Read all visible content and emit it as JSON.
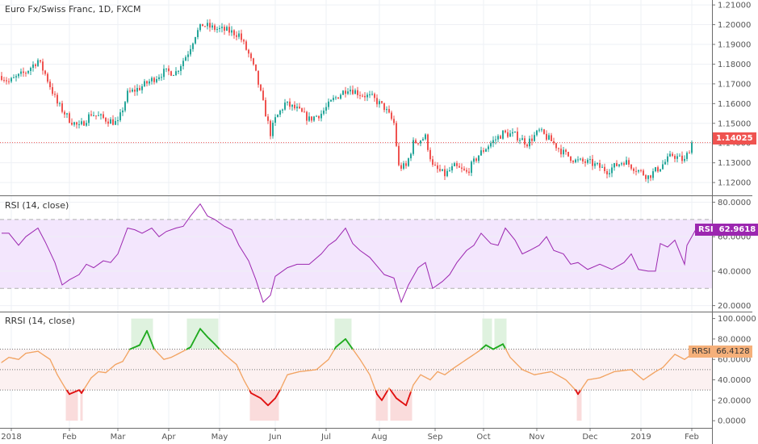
{
  "panes": {
    "main_title": "Euro Fx/Swiss Franc, 1D, FXCM",
    "rsi_title": "RSI (14, close)",
    "rrsi_title": "RRSI (14, close)"
  },
  "tags": {
    "price_value": "1.14025",
    "rsi_name": "RSI",
    "rsi_value": "62.9618",
    "rrsi_name": "RRSI",
    "rrsi_value": "66.4128"
  },
  "colors": {
    "up": "#26a69a",
    "down": "#ef5350",
    "rsi_line": "#9c27b0",
    "rsi_fill": "#f3e6fd",
    "rrsi_line": "#f2a463",
    "rrsi_over": "#1faa1f",
    "rrsi_under": "#e01010"
  },
  "chart_data": [
    {
      "type": "candlestick",
      "title": "Euro Fx/Swiss Franc, 1D, FXCM",
      "x_unit": "trading day index",
      "x_ticks": [
        [
          4,
          "2018"
        ],
        [
          28,
          "Feb"
        ],
        [
          48,
          "Mar"
        ],
        [
          69,
          "Apr"
        ],
        [
          90,
          "May"
        ],
        [
          113,
          "Jun"
        ],
        [
          134,
          "Jul"
        ],
        [
          156,
          "Aug"
        ],
        [
          179,
          "Sep"
        ],
        [
          199,
          "Oct"
        ],
        [
          221,
          "Nov"
        ],
        [
          243,
          "Dec"
        ],
        [
          264,
          "2019"
        ],
        [
          285,
          "Feb"
        ]
      ],
      "y_ticks": [
        "1.12000",
        "1.13000",
        "1.14000",
        "1.15000",
        "1.16000",
        "1.17000",
        "1.18000",
        "1.19000",
        "1.20000",
        "1.21000"
      ],
      "ylim": [
        1.1135,
        1.2125
      ],
      "last": 1.14025,
      "close_path": [
        [
          0,
          1.174
        ],
        [
          3,
          1.171
        ],
        [
          10,
          1.176
        ],
        [
          15,
          1.182
        ],
        [
          18,
          1.175
        ],
        [
          23,
          1.16
        ],
        [
          28,
          1.152
        ],
        [
          32,
          1.148
        ],
        [
          37,
          1.155
        ],
        [
          43,
          1.152
        ],
        [
          48,
          1.15
        ],
        [
          52,
          1.165
        ],
        [
          57,
          1.168
        ],
        [
          62,
          1.172
        ],
        [
          67,
          1.176
        ],
        [
          72,
          1.176
        ],
        [
          77,
          1.186
        ],
        [
          80,
          1.195
        ],
        [
          83,
          1.2
        ],
        [
          88,
          1.198
        ],
        [
          93,
          1.197
        ],
        [
          98,
          1.195
        ],
        [
          102,
          1.185
        ],
        [
          105,
          1.175
        ],
        [
          108,
          1.16
        ],
        [
          111,
          1.145
        ],
        [
          113,
          1.152
        ],
        [
          117,
          1.16
        ],
        [
          122,
          1.157
        ],
        [
          127,
          1.152
        ],
        [
          132,
          1.155
        ],
        [
          137,
          1.162
        ],
        [
          143,
          1.168
        ],
        [
          148,
          1.165
        ],
        [
          153,
          1.163
        ],
        [
          158,
          1.158
        ],
        [
          162,
          1.15
        ],
        [
          164,
          1.128
        ],
        [
          167,
          1.128
        ],
        [
          170,
          1.14
        ],
        [
          175,
          1.143
        ],
        [
          178,
          1.128
        ],
        [
          183,
          1.124
        ],
        [
          187,
          1.128
        ],
        [
          192,
          1.125
        ],
        [
          197,
          1.134
        ],
        [
          202,
          1.14
        ],
        [
          207,
          1.145
        ],
        [
          212,
          1.144
        ],
        [
          217,
          1.14
        ],
        [
          222,
          1.146
        ],
        [
          227,
          1.141
        ],
        [
          232,
          1.135
        ],
        [
          237,
          1.131
        ],
        [
          243,
          1.13
        ],
        [
          250,
          1.126
        ],
        [
          257,
          1.131
        ],
        [
          263,
          1.126
        ],
        [
          267,
          1.123
        ],
        [
          272,
          1.128
        ],
        [
          277,
          1.134
        ],
        [
          282,
          1.131
        ],
        [
          285,
          1.14
        ]
      ]
    },
    {
      "type": "line",
      "title": "RSI (14, close)",
      "y_ticks": [
        "20.0000",
        "40.0000",
        "60.0000",
        "80.0000"
      ],
      "ylim": [
        17,
        83.5
      ],
      "bands": [
        30,
        70
      ],
      "last": 62.9618,
      "points": [
        [
          0,
          62
        ],
        [
          3,
          62
        ],
        [
          7,
          55
        ],
        [
          10,
          60
        ],
        [
          15,
          65
        ],
        [
          18,
          57
        ],
        [
          22,
          45
        ],
        [
          25,
          32
        ],
        [
          28,
          35
        ],
        [
          32,
          38
        ],
        [
          35,
          44
        ],
        [
          38,
          42
        ],
        [
          42,
          46
        ],
        [
          45,
          45
        ],
        [
          48,
          50
        ],
        [
          52,
          65
        ],
        [
          55,
          64
        ],
        [
          58,
          62
        ],
        [
          62,
          65
        ],
        [
          65,
          60
        ],
        [
          68,
          63
        ],
        [
          72,
          65
        ],
        [
          75,
          66
        ],
        [
          78,
          72
        ],
        [
          82,
          79
        ],
        [
          85,
          72
        ],
        [
          88,
          70
        ],
        [
          92,
          66
        ],
        [
          95,
          64
        ],
        [
          98,
          55
        ],
        [
          102,
          46
        ],
        [
          105,
          35
        ],
        [
          108,
          22
        ],
        [
          111,
          26
        ],
        [
          113,
          37
        ],
        [
          118,
          42
        ],
        [
          122,
          44
        ],
        [
          127,
          44
        ],
        [
          132,
          50
        ],
        [
          135,
          55
        ],
        [
          138,
          58
        ],
        [
          142,
          65
        ],
        [
          145,
          56
        ],
        [
          148,
          52
        ],
        [
          152,
          48
        ],
        [
          155,
          43
        ],
        [
          158,
          38
        ],
        [
          162,
          36
        ],
        [
          165,
          22
        ],
        [
          168,
          32
        ],
        [
          172,
          42
        ],
        [
          175,
          45
        ],
        [
          178,
          30
        ],
        [
          182,
          34
        ],
        [
          185,
          38
        ],
        [
          188,
          45
        ],
        [
          192,
          52
        ],
        [
          195,
          55
        ],
        [
          198,
          62
        ],
        [
          202,
          56
        ],
        [
          205,
          55
        ],
        [
          208,
          65
        ],
        [
          212,
          58
        ],
        [
          215,
          50
        ],
        [
          218,
          52
        ],
        [
          222,
          55
        ],
        [
          225,
          60
        ],
        [
          228,
          52
        ],
        [
          232,
          50
        ],
        [
          235,
          44
        ],
        [
          238,
          45
        ],
        [
          242,
          41
        ],
        [
          247,
          44
        ],
        [
          252,
          41
        ],
        [
          257,
          45
        ],
        [
          260,
          50
        ],
        [
          263,
          41
        ],
        [
          267,
          40
        ],
        [
          270,
          40
        ],
        [
          272,
          56
        ],
        [
          275,
          54
        ],
        [
          278,
          58
        ],
        [
          282,
          44
        ],
        [
          283,
          55
        ],
        [
          287,
          65
        ],
        [
          288,
          62.96
        ]
      ]
    },
    {
      "type": "line",
      "title": "RRSI (14, close)",
      "y_ticks": [
        "0.0000",
        "20.0000",
        "40.0000",
        "60.0000",
        "80.0000",
        "100.0000"
      ],
      "ylim": [
        -7,
        106
      ],
      "levels": [
        30,
        50,
        70
      ],
      "last": 66.4128,
      "points": [
        [
          0,
          57
        ],
        [
          3,
          62
        ],
        [
          7,
          60
        ],
        [
          10,
          66
        ],
        [
          15,
          68
        ],
        [
          20,
          60
        ],
        [
          23,
          45
        ],
        [
          26,
          33
        ],
        [
          28,
          26
        ],
        [
          32,
          30
        ],
        [
          33,
          27
        ],
        [
          37,
          42
        ],
        [
          40,
          48
        ],
        [
          43,
          47
        ],
        [
          47,
          55
        ],
        [
          50,
          58
        ],
        [
          53,
          70
        ],
        [
          57,
          74
        ],
        [
          60,
          88
        ],
        [
          63,
          70
        ],
        [
          67,
          60
        ],
        [
          70,
          62
        ],
        [
          75,
          68
        ],
        [
          78,
          72
        ],
        [
          82,
          90
        ],
        [
          85,
          82
        ],
        [
          88,
          75
        ],
        [
          92,
          65
        ],
        [
          97,
          55
        ],
        [
          100,
          40
        ],
        [
          103,
          27
        ],
        [
          107,
          22
        ],
        [
          110,
          15
        ],
        [
          113,
          22
        ],
        [
          115,
          30
        ],
        [
          118,
          45
        ],
        [
          123,
          48
        ],
        [
          130,
          50
        ],
        [
          135,
          60
        ],
        [
          138,
          72
        ],
        [
          142,
          80
        ],
        [
          145,
          70
        ],
        [
          148,
          60
        ],
        [
          152,
          45
        ],
        [
          155,
          26
        ],
        [
          157,
          20
        ],
        [
          160,
          32
        ],
        [
          163,
          22
        ],
        [
          167,
          15
        ],
        [
          170,
          35
        ],
        [
          173,
          45
        ],
        [
          177,
          40
        ],
        [
          180,
          48
        ],
        [
          183,
          45
        ],
        [
          187,
          52
        ],
        [
          192,
          60
        ],
        [
          197,
          68
        ],
        [
          200,
          74
        ],
        [
          203,
          70
        ],
        [
          207,
          75
        ],
        [
          210,
          62
        ],
        [
          215,
          50
        ],
        [
          220,
          45
        ],
        [
          227,
          48
        ],
        [
          233,
          40
        ],
        [
          237,
          30
        ],
        [
          238,
          26
        ],
        [
          242,
          40
        ],
        [
          247,
          42
        ],
        [
          253,
          48
        ],
        [
          260,
          50
        ],
        [
          265,
          40
        ],
        [
          270,
          48
        ],
        [
          273,
          52
        ],
        [
          278,
          65
        ],
        [
          282,
          60
        ],
        [
          285,
          65
        ],
        [
          288,
          66.4
        ]
      ]
    }
  ]
}
